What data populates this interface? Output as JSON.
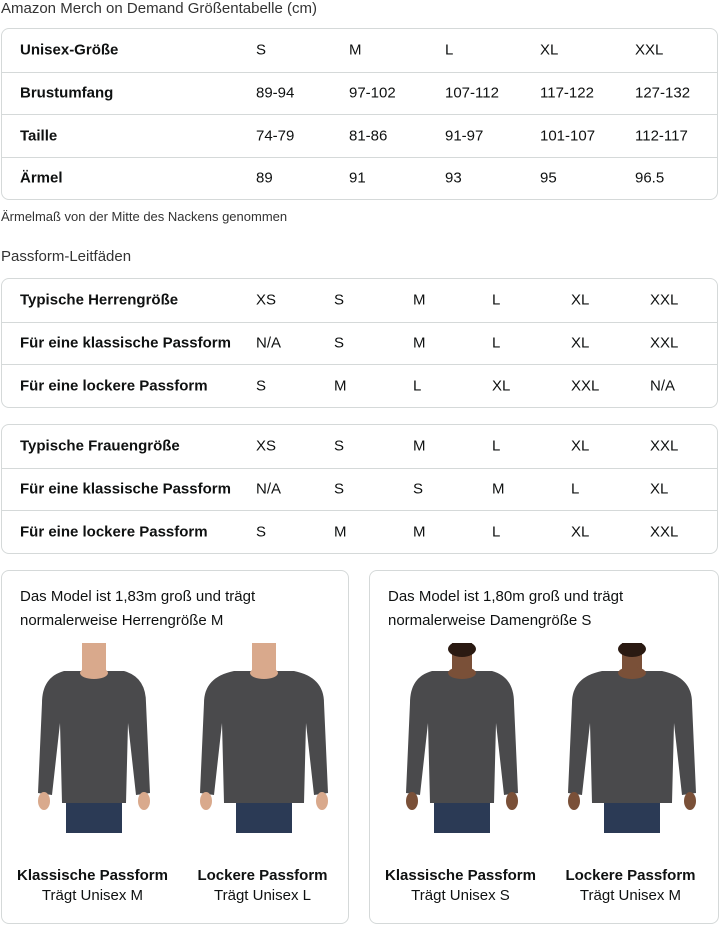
{
  "title": "Amazon Merch on Demand Größentabelle (cm)",
  "size_table": {
    "rows": [
      [
        "Unisex-Größe",
        "S",
        "M",
        "L",
        "XL",
        "XXL"
      ],
      [
        "Brustumfang",
        "89-94",
        "97-102",
        "107-112",
        "117-122",
        "127-132"
      ],
      [
        "Taille",
        "74-79",
        "81-86",
        "91-97",
        "101-107",
        "112-117"
      ],
      [
        "Ärmel",
        "89",
        "91",
        "93",
        "95",
        "96.5"
      ]
    ]
  },
  "note": "Ärmelmaß von der Mitte des Nackens genommen",
  "fit_title": "Passform-Leitfäden",
  "men_table": {
    "rows": [
      [
        "Typische Herrengröße",
        "XS",
        "S",
        "M",
        "L",
        "XL",
        "XXL"
      ],
      [
        "Für eine klassische Passform",
        "N/A",
        "S",
        "M",
        "L",
        "XL",
        "XXL"
      ],
      [
        "Für eine lockere Passform",
        "S",
        "M",
        "L",
        "XL",
        "XXL",
        "N/A"
      ]
    ]
  },
  "women_table": {
    "rows": [
      [
        "Typische Frauengröße",
        "XS",
        "S",
        "M",
        "L",
        "XL",
        "XXL"
      ],
      [
        "Für eine klassische Passform",
        "N/A",
        "S",
        "S",
        "M",
        "L",
        "XL"
      ],
      [
        "Für eine lockere Passform",
        "S",
        "M",
        "M",
        "L",
        "XL",
        "XXL"
      ]
    ]
  },
  "cards": [
    {
      "desc": "Das Model ist 1,83m groß und trägt normalerweise Herrengröße M",
      "figures": [
        {
          "fit": "Klassische Passform",
          "wears": "Trägt Unisex M"
        },
        {
          "fit": "Lockere Passform",
          "wears": "Trägt Unisex L"
        }
      ]
    },
    {
      "desc": "Das Model ist 1,80m groß und trägt normalerweise Damengröße S",
      "figures": [
        {
          "fit": "Klassische Passform",
          "wears": "Trägt Unisex S"
        },
        {
          "fit": "Lockere Passform",
          "wears": "Trägt Unisex M"
        }
      ]
    }
  ],
  "colors": {
    "border": "#d5d9d9",
    "sweatshirt": "#4a4a4c",
    "jeans": "#2b3a55",
    "skin_men": "#d9a98c",
    "skin_women": "#7a5038"
  }
}
